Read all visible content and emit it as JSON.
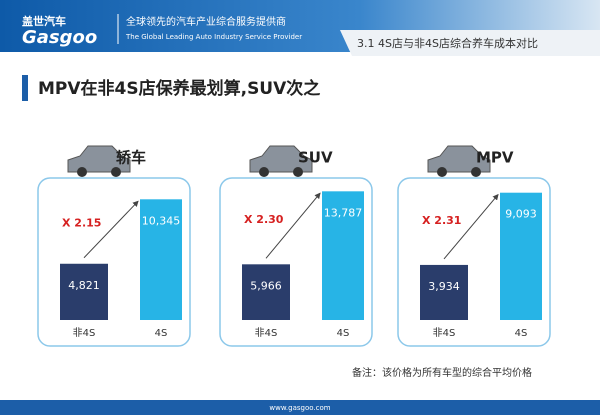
{
  "header": {
    "brand_cn": "盖世汽车",
    "brand_en": "Gasgoo",
    "slogan_cn": "全球领先的汽车产业综合服务提供商",
    "slogan_en": "The Global Leading Auto Industry Service Provider",
    "section": "3.1 4S店与非4S店综合养车成本对比"
  },
  "headline": "MPV在非4S店保养最划算,SUV次之",
  "note": "备注：该价格为所有车型的综合平均价格",
  "footer": "www.gasgoo.com",
  "chart_data": [
    {
      "type": "bar",
      "title": "轿车",
      "categories": [
        "非4S",
        "4S"
      ],
      "values": [
        4821,
        10345
      ],
      "value_labels": [
        "4,821",
        "10,345"
      ],
      "colors": [
        "#2a3d6b",
        "#27b4e6"
      ],
      "annotation": "X 2.15",
      "ylim": [
        0,
        12000
      ]
    },
    {
      "type": "bar",
      "title": "SUV",
      "categories": [
        "非4S",
        "4S"
      ],
      "values": [
        5966,
        13787
      ],
      "value_labels": [
        "5,966",
        "13,787"
      ],
      "colors": [
        "#2a3d6b",
        "#27b4e6"
      ],
      "annotation": "X 2.30",
      "ylim": [
        0,
        15000
      ]
    },
    {
      "type": "bar",
      "title": "MPV",
      "categories": [
        "非4S",
        "4S"
      ],
      "values": [
        3934,
        9093
      ],
      "value_labels": [
        "3,934",
        "9,093"
      ],
      "colors": [
        "#2a3d6b",
        "#27b4e6"
      ],
      "annotation": "X 2.31",
      "ylim": [
        0,
        10000
      ]
    }
  ]
}
